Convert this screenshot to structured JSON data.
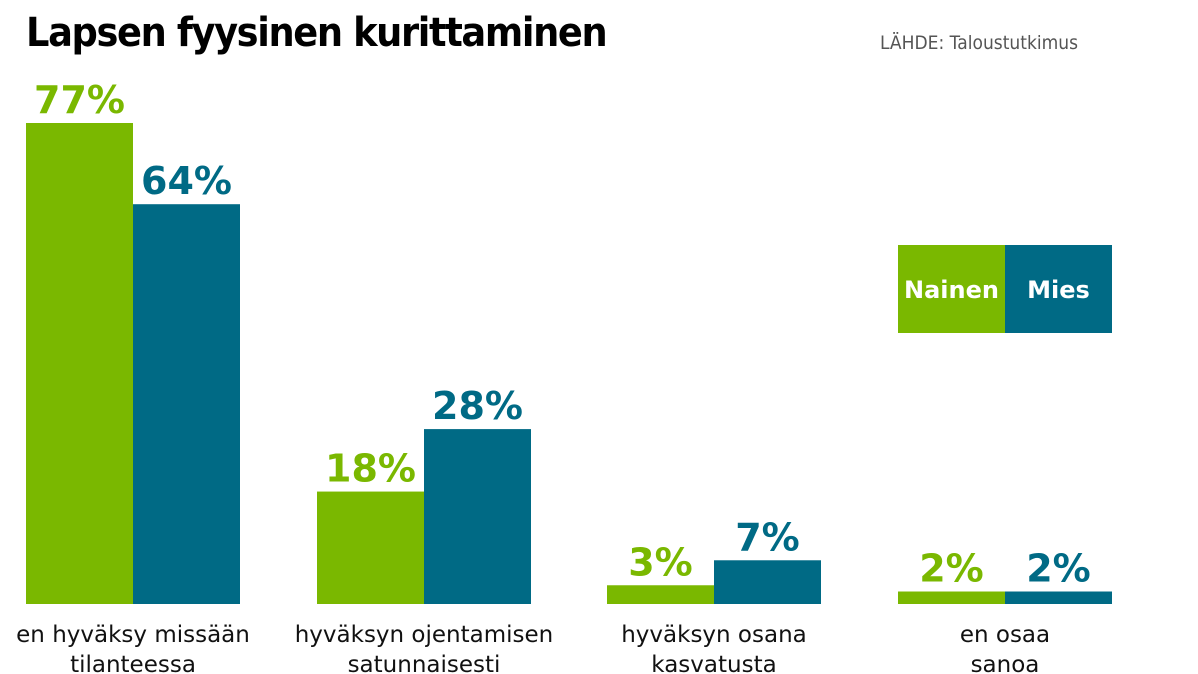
{
  "chart_data": {
    "type": "bar",
    "title": "Lapsen fyysinen kurittaminen",
    "source": "LÄHDE: Taloustutkimus",
    "categories": [
      [
        "en hyväksy missään",
        "tilanteessa"
      ],
      [
        "hyväksyn ojentamisen",
        "satunnaisesti"
      ],
      [
        "hyväksyn osana",
        "kasvatusta"
      ],
      [
        "en osaa",
        "sanoa"
      ]
    ],
    "series": [
      {
        "name": "Nainen",
        "values": [
          77,
          18,
          3,
          2
        ],
        "labels": [
          "77%",
          "18%",
          "3%",
          "2%"
        ],
        "color": "#7ab800"
      },
      {
        "name": "Mies",
        "values": [
          64,
          28,
          7,
          2
        ],
        "labels": [
          "64%",
          "28%",
          "7%",
          "2%"
        ],
        "color": "#006a85"
      }
    ],
    "ylim": [
      0,
      77
    ],
    "legend_position": "right",
    "grid": false
  }
}
